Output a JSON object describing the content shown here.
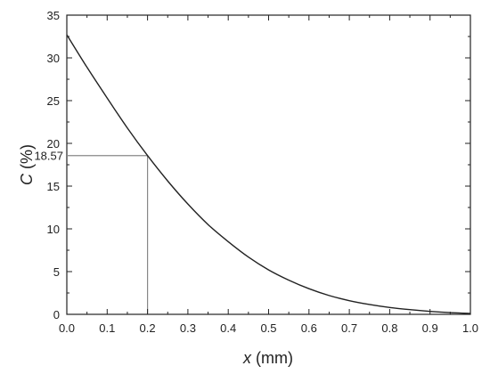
{
  "chart_data": {
    "type": "line",
    "xlabel_var": "x",
    "xlabel_unit": " (mm)",
    "ylabel_var": "C",
    "ylabel_unit": " (%)",
    "xlim": [
      0.0,
      1.0
    ],
    "ylim": [
      0,
      35
    ],
    "x_ticks": [
      0.0,
      0.1,
      0.2,
      0.3,
      0.4,
      0.5,
      0.6,
      0.7,
      0.8,
      0.9,
      1.0
    ],
    "x_tick_labels": [
      "0.0",
      "0.1",
      "0.2",
      "0.3",
      "0.4",
      "0.5",
      "0.6",
      "0.7",
      "0.8",
      "0.9",
      "1.0"
    ],
    "y_ticks": [
      0,
      5,
      10,
      15,
      20,
      25,
      30,
      35
    ],
    "y_tick_labels": [
      "0",
      "5",
      "10",
      "15",
      "20",
      "25",
      "30",
      "35"
    ],
    "grid": false,
    "series": [
      {
        "color": "#222222",
        "x": [
          0.0,
          0.05,
          0.1,
          0.15,
          0.2,
          0.25,
          0.3,
          0.35,
          0.4,
          0.45,
          0.5,
          0.55,
          0.6,
          0.65,
          0.7,
          0.75,
          0.8,
          0.85,
          0.9,
          0.95,
          1.0
        ],
        "y": [
          32.7,
          28.9,
          25.3,
          21.8,
          18.57,
          15.6,
          12.9,
          10.5,
          8.5,
          6.7,
          5.2,
          4.0,
          3.0,
          2.2,
          1.6,
          1.15,
          0.8,
          0.55,
          0.35,
          0.2,
          0.1
        ]
      }
    ],
    "annotation": {
      "x": 0.2,
      "y": 18.57,
      "label": "18.57",
      "color": "#888888"
    }
  }
}
